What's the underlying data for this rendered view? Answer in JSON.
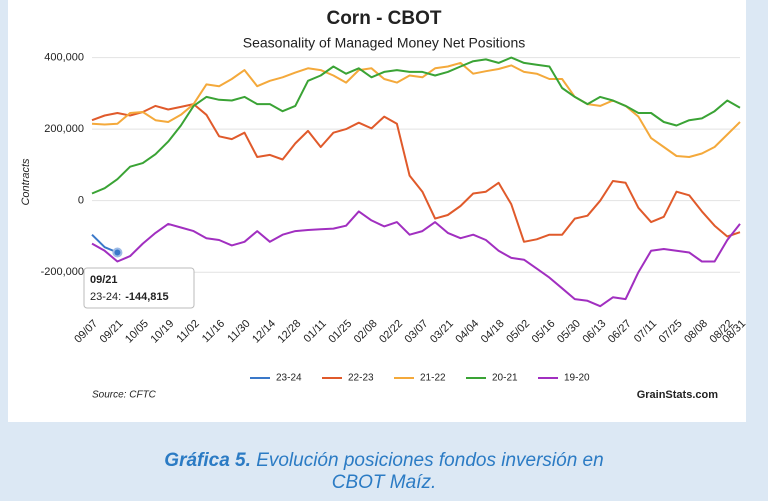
{
  "chart_data": {
    "type": "line",
    "title": "Corn - CBOT",
    "subtitle": "Seasonality of Managed Money Net Positions",
    "y_label": "Contracts",
    "source": "Source: CFTC",
    "brand": "GrainStats.com",
    "tooltip": {
      "title": "09/21",
      "label": "23-24:",
      "value": "-144,815"
    },
    "categories": [
      "09/07",
      null,
      "09/21",
      null,
      "10/05",
      null,
      "10/19",
      null,
      "11/02",
      null,
      "11/16",
      null,
      "11/30",
      null,
      "12/14",
      null,
      "12/28",
      null,
      "01/11",
      null,
      "01/25",
      null,
      "02/08",
      null,
      "02/22",
      null,
      "03/07",
      null,
      "03/21",
      null,
      "04/04",
      null,
      "04/18",
      null,
      "05/02",
      null,
      "05/16",
      null,
      "05/30",
      null,
      "06/13",
      null,
      "06/27",
      null,
      "07/11",
      null,
      "07/25",
      null,
      "08/08",
      null,
      "08/22",
      "08/31"
    ],
    "ylim": [
      -300000,
      410000
    ],
    "yticks": [
      {
        "value": -200000,
        "label": "-200,000"
      },
      0,
      {
        "value": 200000,
        "label": "200,000"
      },
      {
        "value": 400000,
        "label": "400,000"
      }
    ],
    "grid": true,
    "legend": "bottom",
    "series": [
      {
        "name": "23-24",
        "color": "#3a78c9",
        "values": [
          -95000,
          -130000,
          -144815,
          null,
          null,
          null,
          null,
          null,
          null,
          null,
          null,
          null,
          null,
          null,
          null,
          null,
          null,
          null,
          null,
          null,
          null,
          null,
          null,
          null,
          null,
          null,
          null,
          null,
          null,
          null,
          null,
          null,
          null,
          null,
          null,
          null,
          null,
          null,
          null,
          null,
          null,
          null,
          null,
          null,
          null,
          null,
          null,
          null,
          null,
          null,
          null,
          null
        ]
      },
      {
        "name": "22-23",
        "color": "#e05a2b",
        "values": [
          225000,
          238000,
          245000,
          238000,
          248000,
          265000,
          255000,
          262000,
          270000,
          240000,
          180000,
          172000,
          190000,
          122000,
          128000,
          115000,
          160000,
          195000,
          150000,
          190000,
          200000,
          218000,
          202000,
          235000,
          215000,
          70000,
          25000,
          -50000,
          -40000,
          -15000,
          20000,
          25000,
          50000,
          -10000,
          -115000,
          -108000,
          -95000,
          -95000,
          -50000,
          -42000,
          0,
          55000,
          50000,
          -20000,
          -60000,
          -45000,
          25000,
          15000,
          -30000,
          -70000,
          -100000,
          -88000
        ]
      },
      {
        "name": "21-22",
        "color": "#f4a93b",
        "values": [
          215000,
          213000,
          215000,
          245000,
          248000,
          225000,
          220000,
          240000,
          270000,
          325000,
          320000,
          340000,
          365000,
          320000,
          335000,
          345000,
          358000,
          370000,
          365000,
          350000,
          330000,
          365000,
          370000,
          340000,
          330000,
          350000,
          345000,
          370000,
          375000,
          385000,
          355000,
          362000,
          368000,
          378000,
          360000,
          355000,
          340000,
          340000,
          290000,
          270000,
          265000,
          280000,
          265000,
          235000,
          175000,
          150000,
          125000,
          122000,
          132000,
          150000,
          185000,
          220000
        ]
      },
      {
        "name": "20-21",
        "color": "#3aa335",
        "values": [
          20000,
          35000,
          60000,
          95000,
          105000,
          130000,
          165000,
          210000,
          265000,
          290000,
          282000,
          280000,
          290000,
          270000,
          270000,
          250000,
          265000,
          335000,
          350000,
          375000,
          355000,
          370000,
          345000,
          360000,
          365000,
          360000,
          360000,
          350000,
          360000,
          375000,
          390000,
          395000,
          385000,
          400000,
          385000,
          380000,
          375000,
          315000,
          290000,
          270000,
          290000,
          280000,
          265000,
          245000,
          245000,
          220000,
          210000,
          225000,
          230000,
          250000,
          280000,
          260000
        ]
      },
      {
        "name": "19-20",
        "color": "#a12fc0",
        "values": [
          -120000,
          -140000,
          -170000,
          -155000,
          -120000,
          -90000,
          -65000,
          -75000,
          -85000,
          -105000,
          -110000,
          -125000,
          -115000,
          -85000,
          -115000,
          -95000,
          -85000,
          -82000,
          -80000,
          -78000,
          -70000,
          -30000,
          -55000,
          -72000,
          -60000,
          -95000,
          -85000,
          -60000,
          -90000,
          -105000,
          -95000,
          -110000,
          -140000,
          -160000,
          -165000,
          -190000,
          -215000,
          -245000,
          -275000,
          -280000,
          -295000,
          -270000,
          -275000,
          -200000,
          -140000,
          -135000,
          -140000,
          -145000,
          -170000,
          -170000,
          -110000,
          -65000
        ]
      }
    ]
  },
  "caption_label": "Gráfica 5.",
  "caption_text": "Evolución posiciones fondos inversión en",
  "caption_text2": "CBOT Maíz."
}
